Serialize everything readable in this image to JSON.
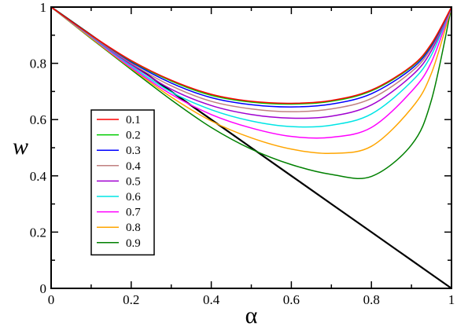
{
  "chart_data": {
    "type": "line",
    "title": "",
    "xlabel": "α",
    "ylabel": "w",
    "xlim": [
      0,
      1
    ],
    "ylim": [
      0,
      1
    ],
    "grid": false,
    "legend_position": "middle-left",
    "x_ticks": [
      0,
      0.2,
      0.4,
      0.6,
      0.8,
      1
    ],
    "x_tick_labels": [
      "0",
      "0.2",
      "0.4",
      "0.6",
      "0.8",
      "1"
    ],
    "y_ticks": [
      0,
      0.2,
      0.4,
      0.6,
      0.8,
      1
    ],
    "y_tick_labels": [
      "0",
      "0.2",
      "0.4",
      "0.6",
      "0.8",
      "1"
    ],
    "x": [
      0,
      0.1,
      0.2,
      0.3,
      0.4,
      0.5,
      0.6,
      0.7,
      0.8,
      0.9,
      0.95,
      1
    ],
    "series": [
      {
        "name": "0.1",
        "color": "#ff0000",
        "values": [
          1,
          0.9,
          0.81,
          0.74,
          0.69,
          0.665,
          0.658,
          0.668,
          0.705,
          0.79,
          0.87,
          1
        ]
      },
      {
        "name": "0.2",
        "color": "#00cc00",
        "values": [
          1,
          0.9,
          0.808,
          0.737,
          0.686,
          0.662,
          0.655,
          0.665,
          0.702,
          0.787,
          0.867,
          1
        ]
      },
      {
        "name": "0.3",
        "color": "#0000ff",
        "values": [
          1,
          0.9,
          0.805,
          0.73,
          0.678,
          0.653,
          0.645,
          0.655,
          0.692,
          0.78,
          0.862,
          1
        ]
      },
      {
        "name": "0.4",
        "color": "#c08080",
        "values": [
          1,
          0.898,
          0.8,
          0.72,
          0.665,
          0.638,
          0.628,
          0.638,
          0.675,
          0.77,
          0.855,
          1
        ]
      },
      {
        "name": "0.5",
        "color": "#a000d0",
        "values": [
          1,
          0.897,
          0.795,
          0.708,
          0.65,
          0.618,
          0.605,
          0.612,
          0.652,
          0.755,
          0.845,
          1
        ]
      },
      {
        "name": "0.6",
        "color": "#00e5e5",
        "values": [
          1,
          0.895,
          0.79,
          0.698,
          0.635,
          0.595,
          0.575,
          0.58,
          0.62,
          0.735,
          0.83,
          1
        ]
      },
      {
        "name": "0.7",
        "color": "#ff00ff",
        "values": [
          1,
          0.893,
          0.785,
          0.69,
          0.618,
          0.57,
          0.54,
          0.537,
          0.572,
          0.7,
          0.805,
          1
        ]
      },
      {
        "name": "0.8",
        "color": "#ffa500",
        "values": [
          1,
          0.89,
          0.782,
          0.68,
          0.595,
          0.535,
          0.495,
          0.48,
          0.505,
          0.64,
          0.765,
          1
        ]
      },
      {
        "name": "0.9",
        "color": "#008000",
        "values": [
          1,
          0.888,
          0.778,
          0.67,
          0.572,
          0.495,
          0.44,
          0.405,
          0.398,
          0.51,
          0.67,
          1
        ]
      },
      {
        "color": "#000000",
        "values": [
          1,
          0.9,
          0.8,
          0.7,
          0.6,
          0.5,
          0.4,
          0.3,
          0.2,
          0.1,
          0.05,
          0
        ]
      }
    ]
  }
}
